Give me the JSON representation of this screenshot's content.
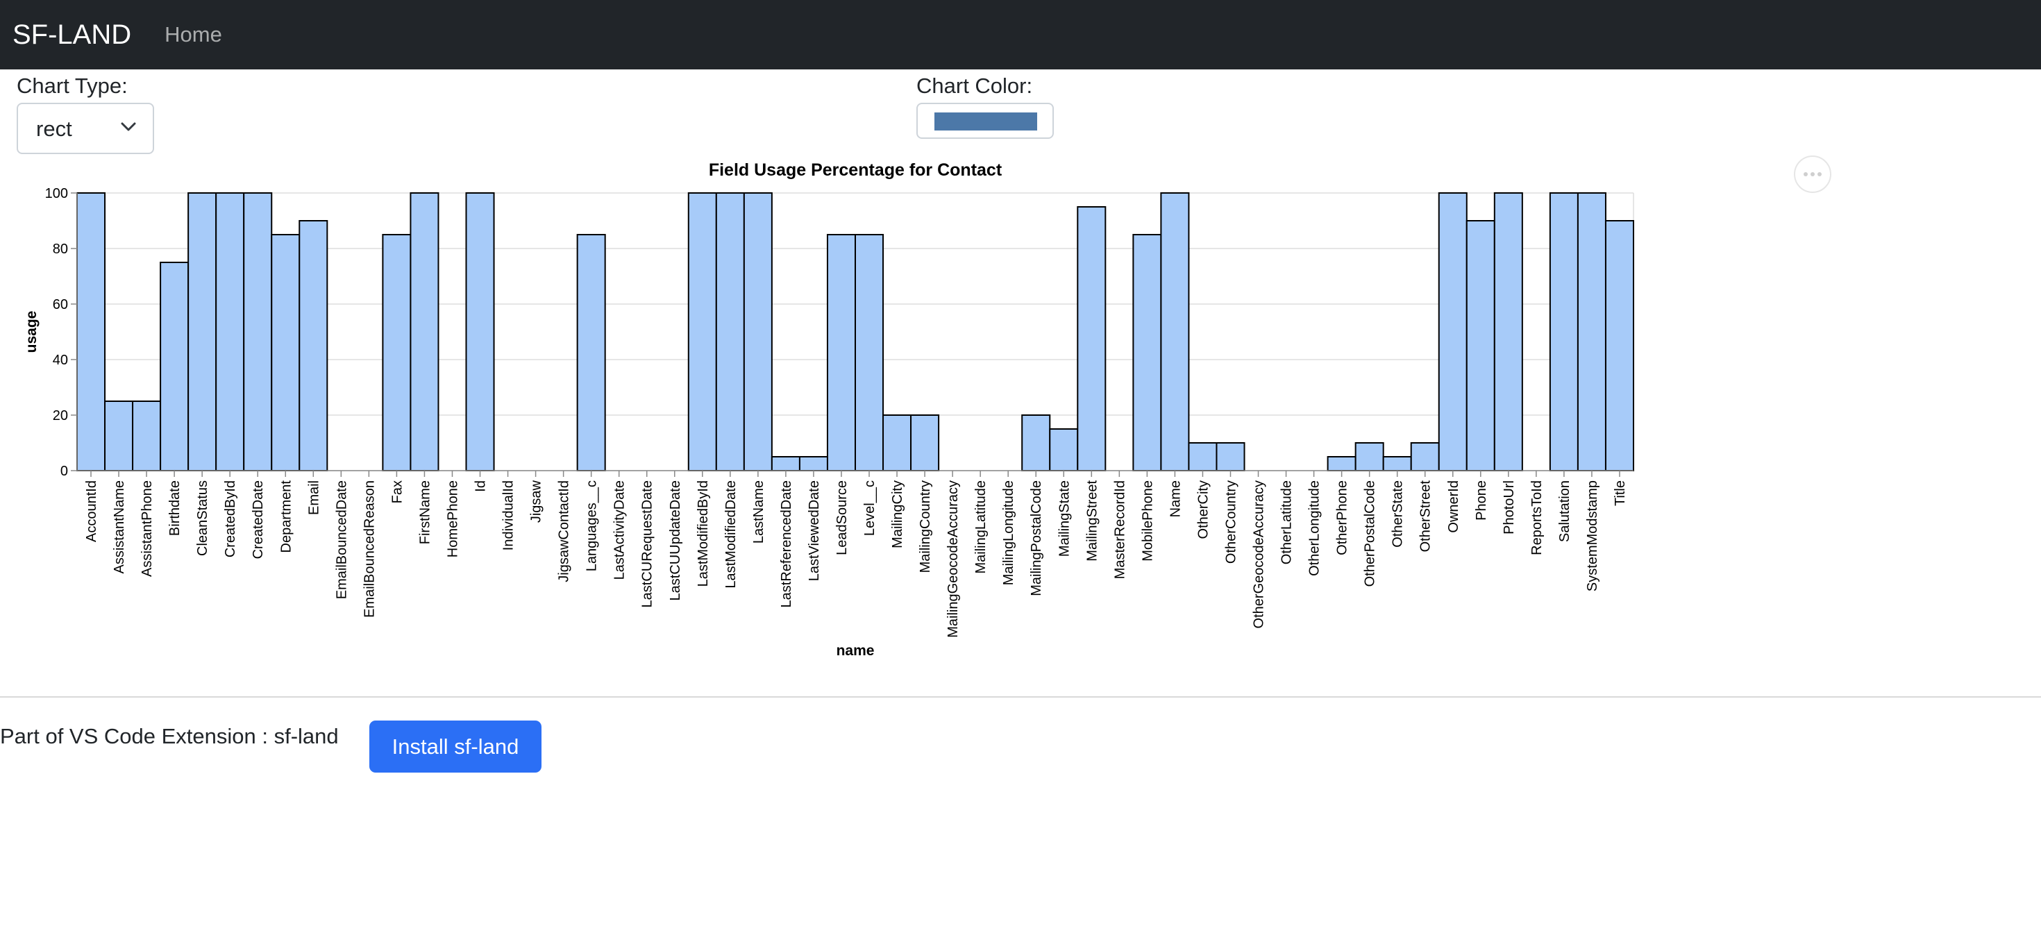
{
  "navbar": {
    "brand": "SF-LAND",
    "home_label": "Home"
  },
  "controls": {
    "chart_type_label": "Chart Type:",
    "chart_type_value": "rect",
    "chart_color_label": "Chart Color:",
    "chart_color_value": "#4c78a8",
    "menu_icon": "more-horizontal-icon"
  },
  "chart_data": {
    "type": "bar",
    "title": "Field Usage Percentage for Contact",
    "xlabel": "name",
    "ylabel": "usage",
    "ylim": [
      0,
      100
    ],
    "yticks": [
      0,
      20,
      40,
      60,
      80,
      100
    ],
    "grid": true,
    "bar_color": "#a7cbf9",
    "categories": [
      "AccountId",
      "AssistantName",
      "AssistantPhone",
      "Birthdate",
      "CleanStatus",
      "CreatedById",
      "CreatedDate",
      "Department",
      "Email",
      "EmailBouncedDate",
      "EmailBouncedReason",
      "Fax",
      "FirstName",
      "HomePhone",
      "Id",
      "IndividualId",
      "Jigsaw",
      "JigsawContactId",
      "Languages__c",
      "LastActivityDate",
      "LastCURequestDate",
      "LastCUUpdateDate",
      "LastModifiedById",
      "LastModifiedDate",
      "LastName",
      "LastReferencedDate",
      "LastViewedDate",
      "LeadSource",
      "Level__c",
      "MailingCity",
      "MailingCountry",
      "MailingGeocodeAccuracy",
      "MailingLatitude",
      "MailingLongitude",
      "MailingPostalCode",
      "MailingState",
      "MailingStreet",
      "MasterRecordId",
      "MobilePhone",
      "Name",
      "OtherCity",
      "OtherCountry",
      "OtherGeocodeAccuracy",
      "OtherLatitude",
      "OtherLongitude",
      "OtherPhone",
      "OtherPostalCode",
      "OtherState",
      "OtherStreet",
      "OwnerId",
      "Phone",
      "PhotoUrl",
      "ReportsToId",
      "Salutation",
      "SystemModstamp",
      "Title"
    ],
    "values": [
      100,
      25,
      25,
      75,
      100,
      100,
      100,
      85,
      90,
      0,
      0,
      85,
      100,
      0,
      100,
      0,
      0,
      0,
      85,
      0,
      0,
      0,
      100,
      100,
      100,
      5,
      5,
      85,
      85,
      20,
      20,
      0,
      0,
      0,
      20,
      15,
      95,
      0,
      85,
      100,
      10,
      10,
      0,
      0,
      0,
      5,
      10,
      5,
      10,
      100,
      90,
      100,
      0,
      100,
      100,
      90
    ]
  },
  "footer": {
    "text": "Part of VS Code Extension : sf-land",
    "install_label": "Install sf-land"
  }
}
